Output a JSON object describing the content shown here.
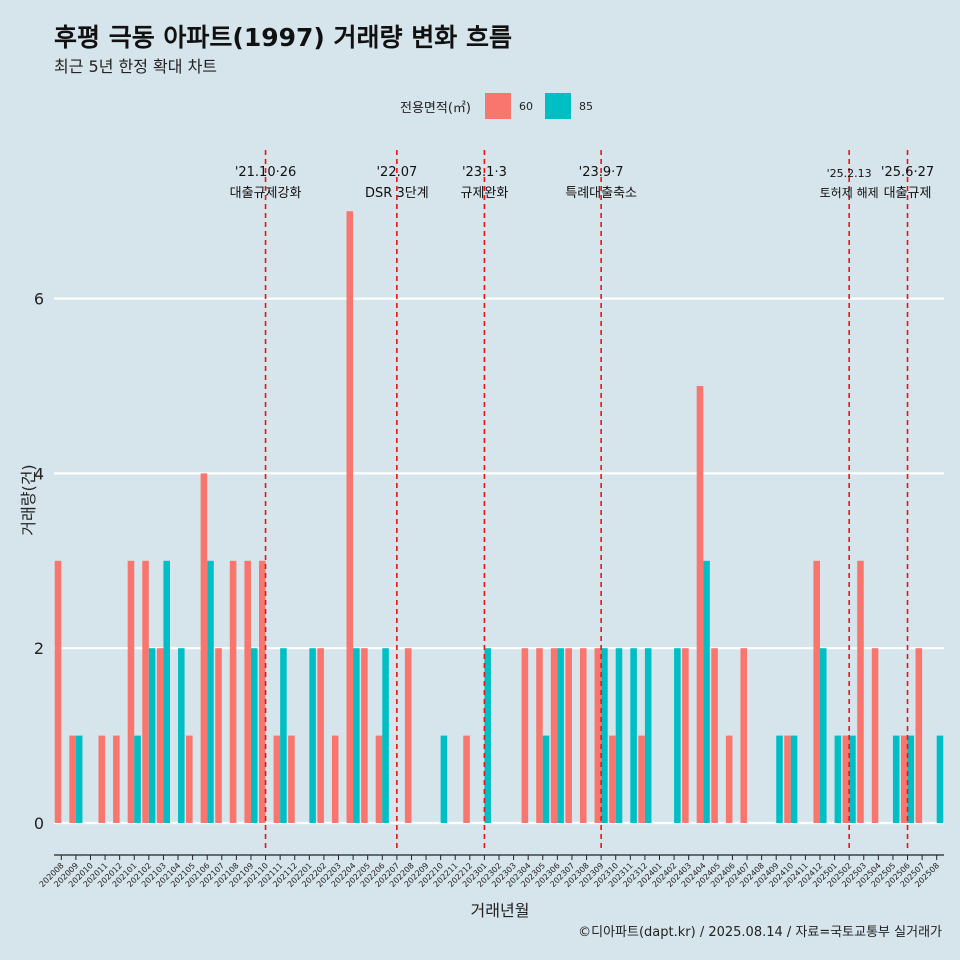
{
  "title": "후평 극동 아파트(1997) 거래량 변화 흐름",
  "subtitle": "최근 5년 한정 확대 차트",
  "caption": "©디아파트(dapt.kr) / 2025.08.14 / 자료=국토교통부 실거래가",
  "legend": {
    "title": "전용면적(㎡)",
    "items": [
      {
        "label": "60",
        "color": "#f8766d"
      },
      {
        "label": "85",
        "color": "#00bfc4"
      }
    ]
  },
  "chart_data": {
    "type": "bar",
    "xlabel": "거래년월",
    "ylabel": "거래량(건)",
    "ylim": [
      0,
      7
    ],
    "yticks": [
      0,
      2,
      4,
      6
    ],
    "grid": true,
    "legend_position": "top",
    "categories": [
      "202008",
      "202009",
      "202010",
      "202011",
      "202012",
      "202101",
      "202102",
      "202103",
      "202104",
      "202105",
      "202106",
      "202107",
      "202108",
      "202109",
      "202110",
      "202111",
      "202112",
      "202201",
      "202202",
      "202203",
      "202204",
      "202205",
      "202206",
      "202207",
      "202208",
      "202209",
      "202210",
      "202211",
      "202212",
      "202301",
      "202302",
      "202303",
      "202304",
      "202305",
      "202306",
      "202307",
      "202308",
      "202309",
      "202310",
      "202311",
      "202312",
      "202401",
      "202402",
      "202403",
      "202404",
      "202405",
      "202406",
      "202407",
      "202408",
      "202409",
      "202410",
      "202411",
      "202412",
      "202501",
      "202502",
      "202503",
      "202504",
      "202505",
      "202506",
      "202507",
      "202508"
    ],
    "series": [
      {
        "name": "60",
        "color": "#f8766d",
        "values": [
          3,
          1,
          0,
          1,
          1,
          3,
          3,
          2,
          0,
          1,
          4,
          2,
          3,
          3,
          3,
          1,
          1,
          0,
          2,
          1,
          7,
          2,
          1,
          0,
          2,
          0,
          0,
          0,
          1,
          0,
          0,
          0,
          2,
          2,
          2,
          2,
          2,
          2,
          1,
          0,
          1,
          0,
          0,
          2,
          5,
          2,
          1,
          2,
          0,
          0,
          1,
          0,
          3,
          0,
          1,
          3,
          2,
          0,
          1,
          2,
          0
        ]
      },
      {
        "name": "85",
        "color": "#00bfc4",
        "values": [
          0,
          1,
          0,
          0,
          0,
          1,
          2,
          3,
          2,
          0,
          3,
          0,
          0,
          2,
          0,
          2,
          0,
          2,
          0,
          0,
          2,
          0,
          2,
          0,
          0,
          0,
          1,
          0,
          0,
          2,
          0,
          0,
          0,
          1,
          2,
          0,
          0,
          2,
          2,
          2,
          2,
          0,
          2,
          0,
          3,
          0,
          0,
          0,
          0,
          1,
          1,
          0,
          2,
          1,
          1,
          0,
          0,
          1,
          1,
          0,
          1
        ]
      }
    ],
    "annotations": [
      {
        "x": "202110",
        "date": "'21.10·26",
        "text": "대출규제강화"
      },
      {
        "x": "202207",
        "date": "'22.07",
        "text": "DSR 3단계"
      },
      {
        "x": "202301",
        "date": "'23.1·3",
        "text": "규제완화"
      },
      {
        "x": "202309",
        "date": "'23.9·7",
        "text": "특례대출축소"
      },
      {
        "x": "202502",
        "date": "'25.2.13",
        "text": "토허제 해제"
      },
      {
        "x": "202506",
        "date": "'25.6·27",
        "text": "대출규제"
      }
    ]
  }
}
